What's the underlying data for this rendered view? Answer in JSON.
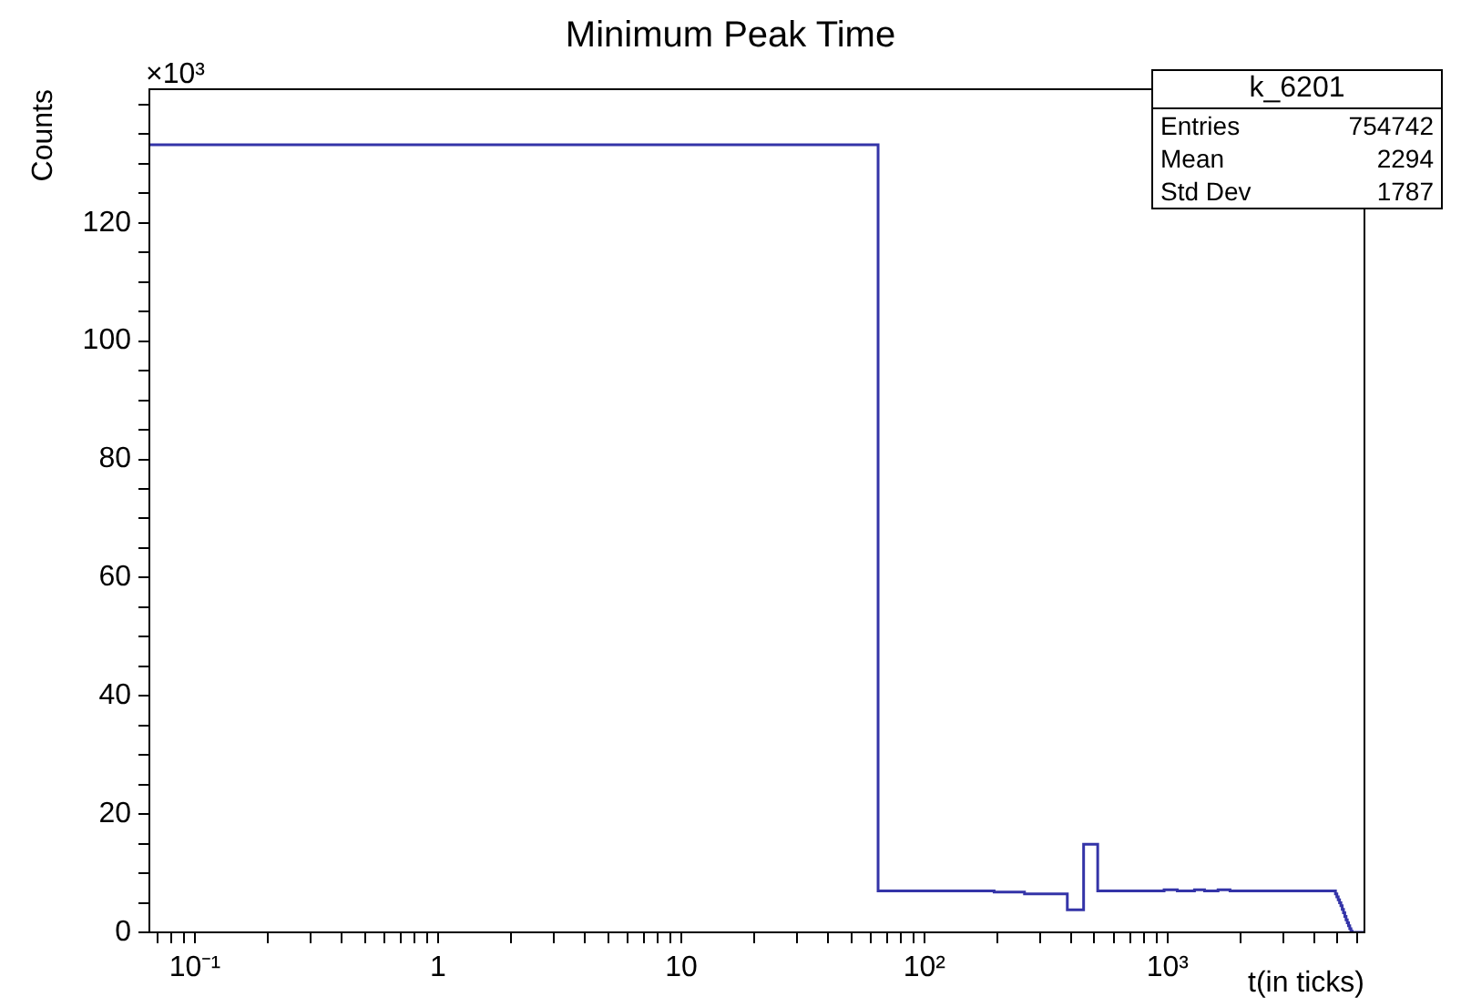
{
  "chart_data": {
    "type": "histogram",
    "title": "Minimum Peak Time",
    "xlabel": "t(in ticks)",
    "ylabel": "Counts",
    "annotations": [
      "×10³",
      "k_6201",
      "Entries",
      "754742",
      "Mean",
      "2294",
      "Std Dev",
      "1787"
    ],
    "color": "#3434a8",
    "bins": [
      0.065,
      64.5,
      193.5,
      258,
      387,
      451.5,
      516,
      967.5,
      1096.5,
      1290,
      1419,
      1612.5,
      1806,
      4902,
      4966.5,
      5031,
      5095.5,
      5160,
      5224.5,
      5289,
      5353.5,
      5418,
      5482.5,
      5547,
      5611.5,
      5676,
      5740.5,
      6450
    ],
    "values": [
      133.2,
      7.0,
      6.8,
      6.5,
      3.8,
      14.9,
      7.0,
      7.2,
      7.0,
      7.2,
      7.0,
      7.2,
      7.0,
      6.5,
      6.0,
      5.5,
      5.0,
      4.5,
      3.9,
      3.3,
      2.7,
      2.1,
      1.6,
      1.1,
      0.6,
      0.2,
      0
    ],
    "log": "x",
    "xlim": [
      0.065,
      6450
    ],
    "xticks": [
      {
        "value": 0.07,
        "label": null
      },
      {
        "value": 0.08,
        "label": null
      },
      {
        "value": 0.09,
        "label": null
      },
      {
        "value": 0.1,
        "label": "10⁻¹"
      },
      {
        "value": 0.2,
        "label": null
      },
      {
        "value": 0.3,
        "label": null
      },
      {
        "value": 0.4,
        "label": null
      },
      {
        "value": 0.5,
        "label": null
      },
      {
        "value": 0.6,
        "label": null
      },
      {
        "value": 0.7,
        "label": null
      },
      {
        "value": 0.8,
        "label": null
      },
      {
        "value": 0.9,
        "label": null
      },
      1,
      {
        "value": 2,
        "label": null
      },
      {
        "value": 3,
        "label": null
      },
      {
        "value": 4,
        "label": null
      },
      {
        "value": 5,
        "label": null
      },
      {
        "value": 6,
        "label": null
      },
      {
        "value": 7,
        "label": null
      },
      {
        "value": 8,
        "label": null
      },
      {
        "value": 9,
        "label": null
      },
      10,
      {
        "value": 20,
        "label": null
      },
      {
        "value": 30,
        "label": null
      },
      {
        "value": 40,
        "label": null
      },
      {
        "value": 50,
        "label": null
      },
      {
        "value": 60,
        "label": null
      },
      {
        "value": 70,
        "label": null
      },
      {
        "value": 80,
        "label": null
      },
      {
        "value": 90,
        "label": null
      },
      {
        "value": 100,
        "label": "10²"
      },
      {
        "value": 200,
        "label": null
      },
      {
        "value": 300,
        "label": null
      },
      {
        "value": 400,
        "label": null
      },
      {
        "value": 500,
        "label": null
      },
      {
        "value": 600,
        "label": null
      },
      {
        "value": 700,
        "label": null
      },
      {
        "value": 800,
        "label": null
      },
      {
        "value": 900,
        "label": null
      },
      {
        "value": 1000,
        "label": "10³"
      },
      {
        "value": 2000,
        "label": null
      },
      {
        "value": 3000,
        "label": null
      },
      {
        "value": 4000,
        "label": null
      },
      {
        "value": 5000,
        "label": null
      },
      {
        "value": 6000,
        "label": null
      }
    ],
    "ylim": [
      0,
      142.6
    ],
    "yticks": [
      0,
      {
        "value": 5,
        "label": null
      },
      {
        "value": 10,
        "label": null
      },
      {
        "value": 15,
        "label": null
      },
      20,
      {
        "value": 25,
        "label": null
      },
      {
        "value": 30,
        "label": null
      },
      {
        "value": 35,
        "label": null
      },
      40,
      {
        "value": 45,
        "label": null
      },
      {
        "value": 50,
        "label": null
      },
      {
        "value": 55,
        "label": null
      },
      60,
      {
        "value": 65,
        "label": null
      },
      {
        "value": 70,
        "label": null
      },
      {
        "value": 75,
        "label": null
      },
      80,
      {
        "value": 85,
        "label": null
      },
      {
        "value": 90,
        "label": null
      },
      {
        "value": 95,
        "label": null
      },
      100,
      {
        "value": 105,
        "label": null
      },
      {
        "value": 110,
        "label": null
      },
      {
        "value": 115,
        "label": null
      },
      120,
      {
        "value": 125,
        "label": null
      },
      {
        "value": 130,
        "label": null
      },
      {
        "value": 135,
        "label": null
      },
      {
        "value": 140,
        "label": null
      }
    ],
    "grid": false,
    "legend": false
  }
}
